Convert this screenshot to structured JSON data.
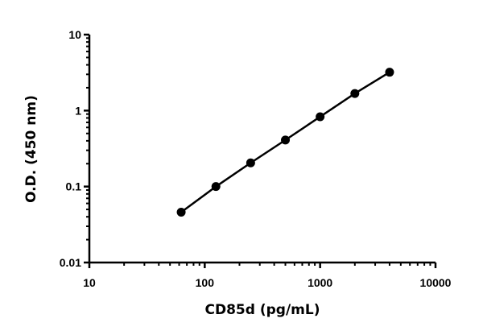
{
  "chart_data": {
    "type": "line",
    "title": "",
    "xlabel": "CD85d (pg/mL)",
    "ylabel": "O.D. (450 nm)",
    "xscale": "log",
    "yscale": "log",
    "xlim": [
      10,
      10000
    ],
    "ylim": [
      0.01,
      10
    ],
    "xticks": [
      "10",
      "100",
      "1000",
      "10000"
    ],
    "yticks": [
      "0.01",
      "0.1",
      "1",
      "10"
    ],
    "grid": false,
    "legend": null,
    "series": [
      {
        "name": "CD85d standard curve",
        "marker": "circle",
        "color": "#000000",
        "x": [
          62.5,
          125,
          250,
          500,
          1000,
          2000,
          4000
        ],
        "y": [
          0.046,
          0.1,
          0.205,
          0.41,
          0.83,
          1.68,
          3.2
        ]
      }
    ]
  },
  "axes": {
    "x_title": "CD85d (pg/mL)",
    "y_title": "O.D. (450 nm)",
    "x_tick_labels": [
      "10",
      "100",
      "1000",
      "10000"
    ],
    "y_tick_labels": [
      "0.01",
      "0.1",
      "1",
      "10"
    ]
  }
}
